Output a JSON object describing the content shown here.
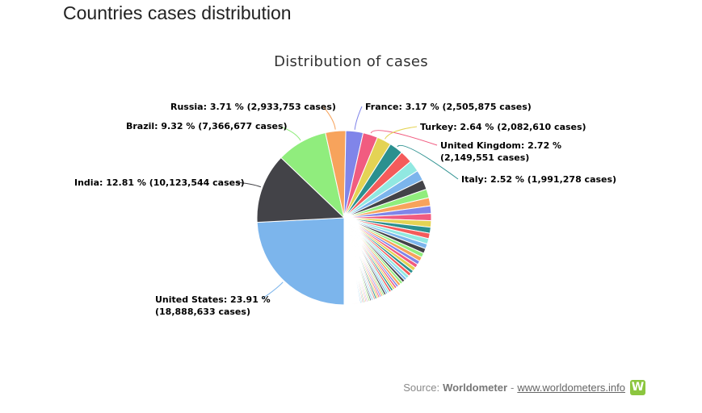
{
  "page": {
    "title": "Countries cases distribution"
  },
  "source": {
    "prefix": "Source:",
    "name": "Worldometer",
    "separator": "-",
    "link_text": "www.worldometers.info",
    "logo_letter": "W"
  },
  "chart_data": {
    "type": "pie",
    "title": "Distribution of cases",
    "slices": [
      {
        "name": "United States",
        "percent": 23.91,
        "value_text": "18,888,633",
        "label_line1": "United States: 23.91 %",
        "label_line2": "(18,888,633 cases)",
        "color": "#7cb5ec"
      },
      {
        "name": "India",
        "percent": 12.81,
        "value_text": "10,123,544",
        "label_line1": "India: 12.81 % (10,123,544 cases)",
        "label_line2": "",
        "color": "#434348"
      },
      {
        "name": "Brazil",
        "percent": 9.32,
        "value_text": "7,366,677",
        "label_line1": "Brazil: 9.32 % (7,366,677 cases)",
        "label_line2": "",
        "color": "#90ed7d"
      },
      {
        "name": "Russia",
        "percent": 3.71,
        "value_text": "2,933,753",
        "label_line1": "Russia: 3.71 % (2,933,753 cases)",
        "label_line2": "",
        "color": "#f7a35c"
      },
      {
        "name": "France",
        "percent": 3.17,
        "value_text": "2,505,875",
        "label_line1": "France: 3.17 % (2,505,875 cases)",
        "label_line2": "",
        "color": "#8085e9"
      },
      {
        "name": "United Kingdom",
        "percent": 2.72,
        "value_text": "2,149,551",
        "label_line1": "United Kingdom: 2.72 %",
        "label_line2": "(2,149,551 cases)",
        "color": "#f15c80"
      },
      {
        "name": "Turkey",
        "percent": 2.64,
        "value_text": "2,082,610",
        "label_line1": "Turkey: 2.64 % (2,082,610 cases)",
        "label_line2": "",
        "color": "#e4d354"
      },
      {
        "name": "Italy",
        "percent": 2.52,
        "value_text": "1,991,278",
        "label_line1": "Italy: 2.52 % (1,991,278 cases)",
        "label_line2": "",
        "color": "#2b908f"
      }
    ],
    "other_slices_percent": [
      2.3,
      2.1,
      1.9,
      1.8,
      1.6,
      1.5,
      1.4,
      1.3,
      1.2,
      1.1,
      1.0,
      1.0,
      0.9,
      0.9,
      0.8,
      0.8,
      0.7,
      0.7,
      0.7,
      0.6,
      0.6,
      0.6,
      0.5,
      0.5,
      0.5,
      0.5,
      0.4,
      0.4,
      0.4,
      0.4,
      0.4,
      0.35,
      0.35,
      0.35,
      0.3,
      0.3,
      0.3,
      0.3,
      0.3,
      0.3,
      0.25,
      0.25,
      0.25,
      0.25,
      0.25,
      0.2,
      0.2,
      0.2,
      0.2,
      0.2,
      0.2,
      0.2,
      0.2,
      0.15,
      0.15,
      0.15,
      0.15,
      0.15,
      0.15,
      0.15,
      0.15,
      0.15,
      0.15,
      0.1,
      0.1,
      0.1,
      0.1,
      0.1,
      0.1,
      0.1,
      0.1,
      0.1,
      0.1,
      0.1,
      0.1,
      0.1,
      0.1
    ],
    "palette": [
      "#7cb5ec",
      "#434348",
      "#90ed7d",
      "#f7a35c",
      "#8085e9",
      "#f15c80",
      "#e4d354",
      "#2b908f",
      "#f45b5b",
      "#91e8e1"
    ],
    "legend": "none"
  }
}
